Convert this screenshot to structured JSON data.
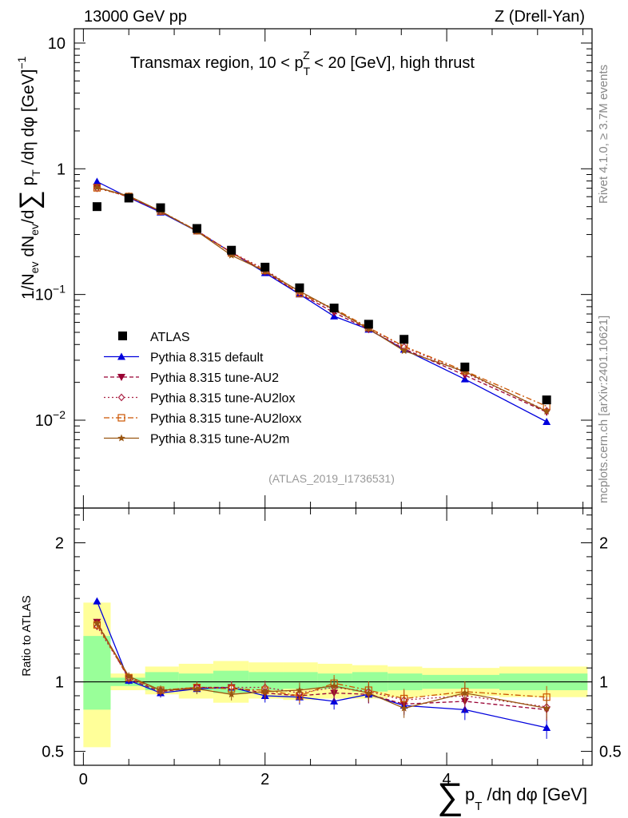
{
  "header": {
    "left": "13000 GeV pp",
    "right": "Z (Drell-Yan)"
  },
  "side": {
    "rivet": "Rivet 4.1.0, ≥ 3.7M events",
    "mcplots": "mcplots.cern.ch [arXiv:2401.10621]"
  },
  "ytitle_main": "1/N_ev dN_ev/d∑ p_T /dη dφ [GeV]^-1",
  "xtitle": "∑ p_T /dη dφ [GeV]",
  "ytitle_ratio": "Ratio to ATLAS",
  "colors": {
    "atlas": "#000000",
    "default": "#0000dd",
    "au2": "#990033",
    "au2lox": "#aa2244",
    "au2loxx": "#cc5500",
    "au2m": "#995511",
    "band_inner": "#99ff99",
    "band_outer": "#ffff99"
  },
  "chart_data": {
    "type": "scatter",
    "title": "Transmax region, 10 < p_T^Z < 20 [GeV], high thrust",
    "title_parts": {
      "pre": "Transmax region, 10 < p",
      "sub": "T",
      "sup": "Z",
      "post": " < 20 [GeV], high thrust"
    },
    "analysis_tag": "(ATLAS_2019_I1736531)",
    "xlabel": "∑ p_T /dη dφ [GeV]",
    "ylabel": "1/N_ev dN_ev/d∑ p_T /dη dφ [GeV]^-1",
    "xlim": [
      -0.1,
      5.6
    ],
    "ylim": [
      0.002,
      13
    ],
    "ratio_ylim": [
      0.4,
      2.25
    ],
    "yscale": "log",
    "x_ticks": [
      0,
      2,
      4
    ],
    "y_tick_labels": [
      {
        "v": 0.01,
        "base": "10",
        "exp": "−2"
      },
      {
        "v": 0.1,
        "base": "10",
        "exp": "−1"
      },
      {
        "v": 1,
        "base": "1",
        "exp": ""
      },
      {
        "v": 10,
        "base": "10",
        "exp": ""
      }
    ],
    "ratio_ticks": [
      {
        "v": 0.5,
        "label": "0.5"
      },
      {
        "v": 1,
        "label": "1"
      },
      {
        "v": 2,
        "label": "2"
      }
    ],
    "x": [
      0.15,
      0.5,
      0.85,
      1.25,
      1.63,
      2.0,
      2.38,
      2.76,
      3.14,
      3.53,
      4.2,
      5.1
    ],
    "x_edges": [
      0,
      0.3,
      0.68,
      1.05,
      1.43,
      1.82,
      2.2,
      2.58,
      2.96,
      3.35,
      3.73,
      4.58,
      5.55
    ],
    "atlas": {
      "name": "ATLAS",
      "values": [
        0.5,
        0.585,
        0.49,
        0.335,
        0.225,
        0.165,
        0.113,
        0.078,
        0.058,
        0.044,
        0.0265,
        0.0145
      ]
    },
    "bands": {
      "inner": [
        [
          0.8,
          1.33
        ],
        [
          0.97,
          1.03
        ],
        [
          0.94,
          1.07
        ],
        [
          0.94,
          1.06
        ],
        [
          0.92,
          1.08
        ],
        [
          0.94,
          1.07
        ],
        [
          0.95,
          1.07
        ],
        [
          0.95,
          1.06
        ],
        [
          0.93,
          1.07
        ],
        [
          0.94,
          1.06
        ],
        [
          0.95,
          1.05
        ],
        [
          0.94,
          1.06
        ]
      ],
      "outer": [
        [
          0.53,
          1.57
        ],
        [
          0.94,
          1.06
        ],
        [
          0.91,
          1.11
        ],
        [
          0.88,
          1.13
        ],
        [
          0.85,
          1.15
        ],
        [
          0.88,
          1.14
        ],
        [
          0.87,
          1.14
        ],
        [
          0.88,
          1.13
        ],
        [
          0.88,
          1.12
        ],
        [
          0.89,
          1.11
        ],
        [
          0.9,
          1.1
        ],
        [
          0.89,
          1.11
        ]
      ]
    },
    "series": [
      {
        "name": "Pythia 8.315 default",
        "key": "default",
        "marker": "triangle-up",
        "dash": "",
        "width": 1.3,
        "ratio": [
          1.58,
          1.01,
          0.92,
          0.95,
          0.96,
          0.9,
          0.89,
          0.86,
          0.91,
          0.83,
          0.8,
          0.67
        ]
      },
      {
        "name": "Pythia 8.315 tune-AU2",
        "key": "au2",
        "marker": "triangle-down",
        "dash": "5,3",
        "width": 1.3,
        "ratio": [
          1.43,
          1.02,
          0.93,
          0.96,
          0.96,
          0.92,
          0.9,
          0.92,
          0.91,
          0.84,
          0.86,
          0.8
        ]
      },
      {
        "name": "Pythia 8.315 tune-AU2lox",
        "key": "au2lox",
        "marker": "diamond",
        "dash": "2,3",
        "width": 1.3,
        "ratio": [
          1.4,
          1.03,
          0.94,
          0.96,
          0.96,
          0.96,
          0.92,
          0.96,
          0.93,
          0.87,
          0.9,
          0.82
        ]
      },
      {
        "name": "Pythia 8.315 tune-AU2loxx",
        "key": "au2loxx",
        "marker": "square",
        "dash": "7,3,2,3",
        "width": 1.3,
        "ratio": [
          1.41,
          1.03,
          0.94,
          0.96,
          0.95,
          0.94,
          0.9,
          0.99,
          0.94,
          0.88,
          0.93,
          0.89
        ]
      },
      {
        "name": "Pythia 8.315 tune-AU2m",
        "key": "au2m",
        "marker": "star",
        "dash": "",
        "width": 1.3,
        "ratio": [
          1.42,
          1.04,
          0.94,
          0.95,
          0.91,
          0.93,
          0.94,
          0.97,
          0.92,
          0.81,
          0.92,
          0.81
        ]
      }
    ]
  }
}
